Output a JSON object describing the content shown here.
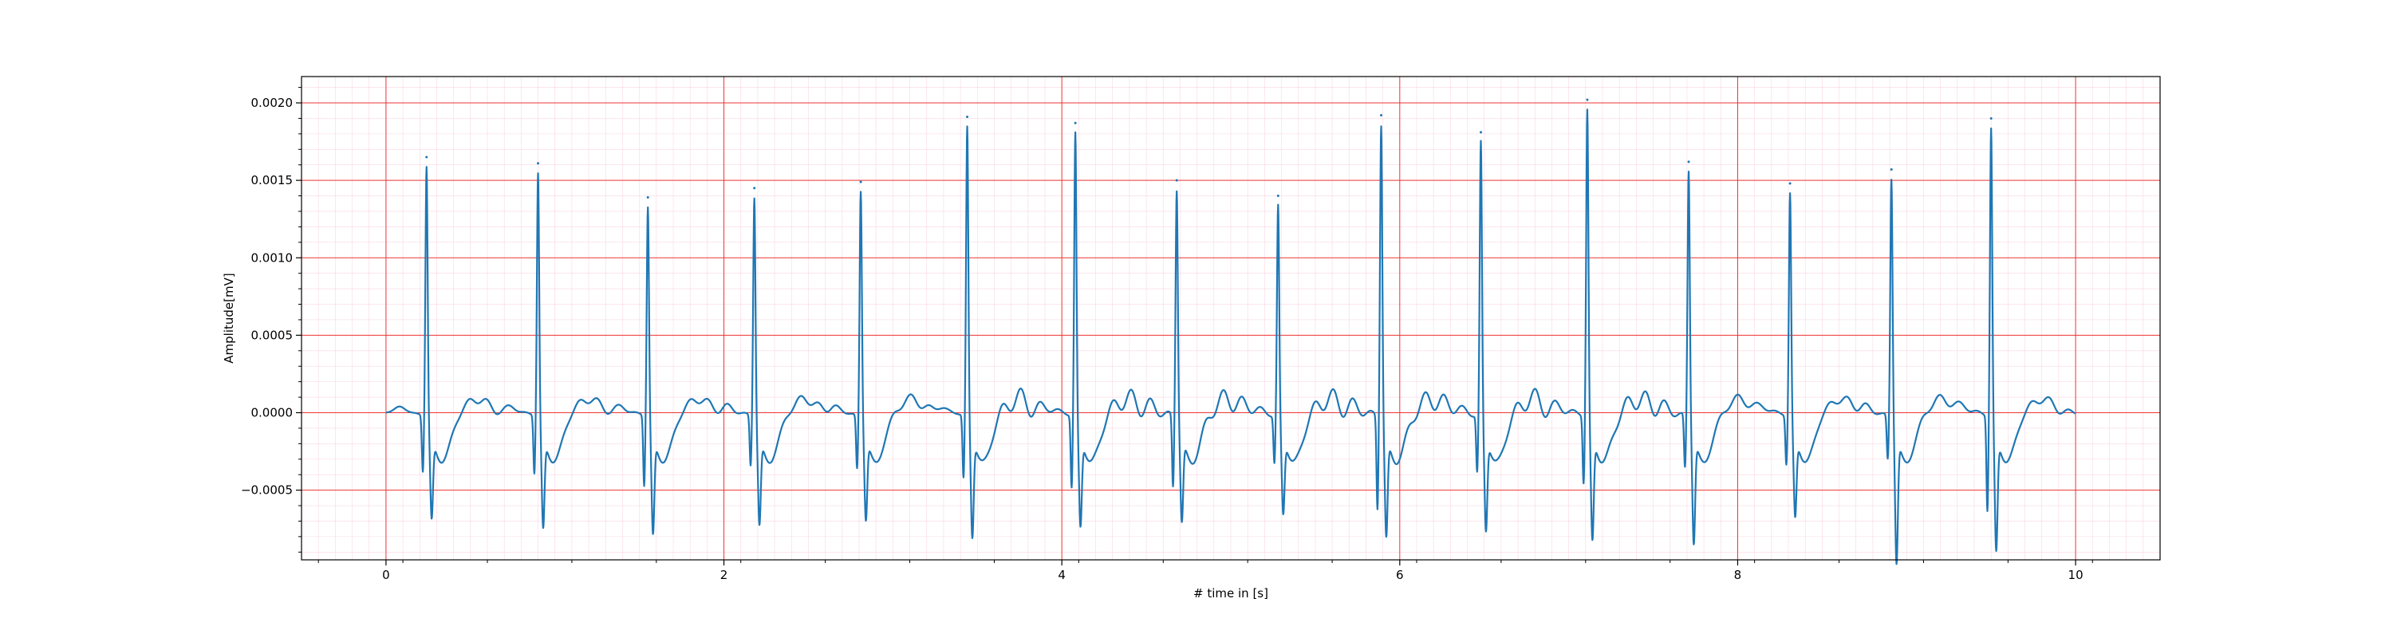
{
  "chart_data": {
    "type": "line",
    "title": "",
    "xlabel": "# time in [s]",
    "ylabel": "Amplitude[mV]",
    "xlim": [
      -0.5,
      10.5
    ],
    "ylim": [
      -0.00095,
      0.00217
    ],
    "xticks": [
      0,
      2,
      4,
      6,
      8,
      10
    ],
    "xtick_labels": [
      "0",
      "2",
      "4",
      "6",
      "8",
      "10"
    ],
    "yticks": [
      -0.0005,
      0.0,
      0.0005,
      0.001,
      0.0015,
      0.002
    ],
    "ytick_labels": [
      "−0.0005",
      "0.0000",
      "0.0005",
      "0.0010",
      "0.0015",
      "0.0020"
    ],
    "grid": {
      "major": true,
      "minor": true,
      "major_color": "#ee3333",
      "minor_color": "#f4b6cf"
    },
    "legend": "none",
    "series": [
      {
        "color": "#1f77b4",
        "beats": [
          {
            "t": 0.24,
            "peak": 0.00165,
            "q": -0.00036,
            "s": -0.00053
          },
          {
            "t": 0.9,
            "peak": 0.00161,
            "q": -0.00037,
            "s": -0.00059
          },
          {
            "t": 1.55,
            "peak": 0.00139,
            "q": -0.00045,
            "s": -0.00063
          },
          {
            "t": 2.18,
            "peak": 0.00145,
            "q": -0.00032,
            "s": -0.00057
          },
          {
            "t": 2.81,
            "peak": 0.00149,
            "q": -0.00034,
            "s": -0.00054
          },
          {
            "t": 3.44,
            "peak": 0.00191,
            "q": -0.0004,
            "s": -0.00065
          },
          {
            "t": 4.08,
            "peak": 0.00187,
            "q": -0.00046,
            "s": -0.00058
          },
          {
            "t": 4.68,
            "peak": 0.0015,
            "q": -0.00046,
            "s": -0.00055
          },
          {
            "t": 5.28,
            "peak": 0.0014,
            "q": -0.0003,
            "s": -0.0005
          },
          {
            "t": 5.89,
            "peak": 0.00192,
            "q": -0.0006,
            "s": -0.00065
          },
          {
            "t": 6.48,
            "peak": 0.00181,
            "q": -0.00036,
            "s": -0.00061
          },
          {
            "t": 7.11,
            "peak": 0.00202,
            "q": -0.00043,
            "s": -0.00067
          },
          {
            "t": 7.71,
            "peak": 0.00162,
            "q": -0.00034,
            "s": -0.00069
          },
          {
            "t": 8.31,
            "peak": 0.00148,
            "q": -0.00031,
            "s": -0.00052
          },
          {
            "t": 8.91,
            "peak": 0.00157,
            "q": -0.00028,
            "s": -0.00082
          },
          {
            "t": 9.5,
            "peak": 0.0019,
            "q": -0.00061,
            "s": -0.00074
          }
        ]
      }
    ]
  }
}
